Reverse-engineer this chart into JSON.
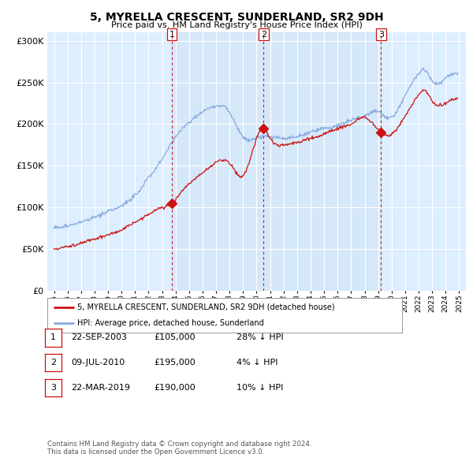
{
  "title": "5, MYRELLA CRESCENT, SUNDERLAND, SR2 9DH",
  "subtitle": "Price paid vs. HM Land Registry's House Price Index (HPI)",
  "ylim": [
    0,
    310000
  ],
  "yticks": [
    0,
    50000,
    100000,
    150000,
    200000,
    250000,
    300000
  ],
  "ytick_labels": [
    "£0",
    "£50K",
    "£100K",
    "£150K",
    "£200K",
    "£250K",
    "£300K"
  ],
  "xmin": 1994.5,
  "xmax": 2025.5,
  "bg_color": "#ddeeff",
  "red_color": "#cc1111",
  "blue_color": "#88aadd",
  "vline_color": "#cc0000",
  "shade_color": "#ccddf5",
  "trans_dates_num": [
    2003.72,
    2010.52,
    2019.22
  ],
  "trans_prices": [
    105000,
    195000,
    190000
  ],
  "trans_labels": [
    "1",
    "2",
    "3"
  ],
  "legend_line1": "5, MYRELLA CRESCENT, SUNDERLAND, SR2 9DH (detached house)",
  "legend_line2": "HPI: Average price, detached house, Sunderland",
  "footer_line1": "Contains HM Land Registry data © Crown copyright and database right 2024.",
  "footer_line2": "This data is licensed under the Open Government Licence v3.0.",
  "table_rows": [
    {
      "num": "1",
      "date": "22-SEP-2003",
      "price": "£105,000",
      "pct": "28% ↓ HPI"
    },
    {
      "num": "2",
      "date": "09-JUL-2010",
      "price": "£195,000",
      "pct": "4% ↓ HPI"
    },
    {
      "num": "3",
      "date": "22-MAR-2019",
      "price": "£190,000",
      "pct": "10% ↓ HPI"
    }
  ],
  "hpi_key_dates": [
    1995.0,
    1996.0,
    1997.0,
    1998.0,
    1999.0,
    2000.0,
    2001.0,
    2002.0,
    2003.0,
    2004.0,
    2005.0,
    2006.0,
    2007.0,
    2007.8,
    2009.0,
    2010.0,
    2011.0,
    2012.0,
    2013.0,
    2014.0,
    2015.0,
    2016.0,
    2017.0,
    2018.0,
    2019.0,
    2020.0,
    2021.0,
    2022.0,
    2022.5,
    2023.0,
    2024.0,
    2024.9
  ],
  "hpi_key_vals": [
    75000,
    78000,
    82000,
    88000,
    95000,
    102000,
    115000,
    135000,
    158000,
    185000,
    202000,
    215000,
    222000,
    218000,
    185000,
    183000,
    185000,
    183000,
    185000,
    190000,
    195000,
    198000,
    205000,
    210000,
    215000,
    208000,
    235000,
    260000,
    265000,
    252000,
    255000,
    260000
  ],
  "red_key_dates": [
    1995.0,
    1996.0,
    1997.0,
    1998.0,
    1999.0,
    2000.0,
    2001.0,
    2002.0,
    2003.0,
    2003.72,
    2004.5,
    2005.5,
    2006.5,
    2007.5,
    2008.0,
    2009.0,
    2010.52,
    2011.0,
    2012.0,
    2013.0,
    2014.0,
    2015.0,
    2016.0,
    2017.0,
    2018.0,
    2019.22,
    2020.0,
    2021.0,
    2022.0,
    2022.5,
    2023.0,
    2024.0,
    2024.9
  ],
  "red_key_vals": [
    50000,
    53000,
    57000,
    62000,
    67000,
    73000,
    82000,
    92000,
    100000,
    105000,
    120000,
    135000,
    148000,
    157000,
    153000,
    138000,
    195000,
    183000,
    175000,
    178000,
    183000,
    188000,
    195000,
    200000,
    208000,
    190000,
    188000,
    210000,
    235000,
    240000,
    228000,
    225000,
    230000
  ]
}
